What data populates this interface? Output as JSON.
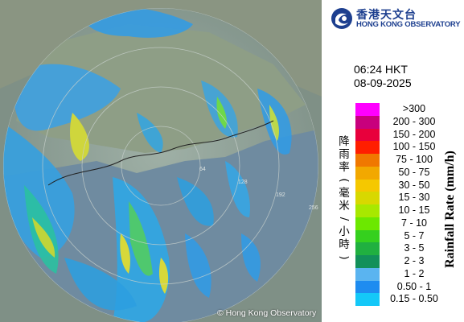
{
  "header": {
    "org_name_zh": "香港天文台",
    "org_name_en": "HONG KONG OBSERVATORY"
  },
  "timestamp": {
    "time": "06:24 HKT",
    "date": "08-09-2025"
  },
  "legend": {
    "title_en": "Rainfall Rate (mm/h)",
    "title_zh": "降雨率(毫米/小時)",
    "items": [
      {
        "label": ">300",
        "color": "#ff00ff"
      },
      {
        "label": "200 - 300",
        "color": "#c8007d"
      },
      {
        "label": "150 - 200",
        "color": "#e8003c"
      },
      {
        "label": "100 - 150",
        "color": "#ff1e00"
      },
      {
        "label": "75 - 100",
        "color": "#f07800"
      },
      {
        "label": "50 - 75",
        "color": "#f2a800"
      },
      {
        "label": "30 - 50",
        "color": "#f5c800"
      },
      {
        "label": "15 - 30",
        "color": "#d8d800"
      },
      {
        "label": "10 - 15",
        "color": "#a8e800"
      },
      {
        "label": "7 - 10",
        "color": "#6ce800"
      },
      {
        "label": "5 - 7",
        "color": "#35d01e"
      },
      {
        "label": "3 - 5",
        "color": "#20b040"
      },
      {
        "label": "2 - 3",
        "color": "#12905a"
      },
      {
        "label": "1 - 2",
        "color": "#5ab4f0"
      },
      {
        "label": "0.50 - 1",
        "color": "#1e8cf0"
      },
      {
        "label": "0.15 - 0.50",
        "color": "#14c8f8"
      }
    ]
  },
  "map": {
    "copyright": "© Hong Kong Observatory",
    "range_ring_labels": [
      "64",
      "128",
      "192",
      "256"
    ]
  },
  "colors": {
    "brand": "#1d3f8f",
    "land": "#8a9a8f",
    "sea": "#6e8a9e"
  }
}
